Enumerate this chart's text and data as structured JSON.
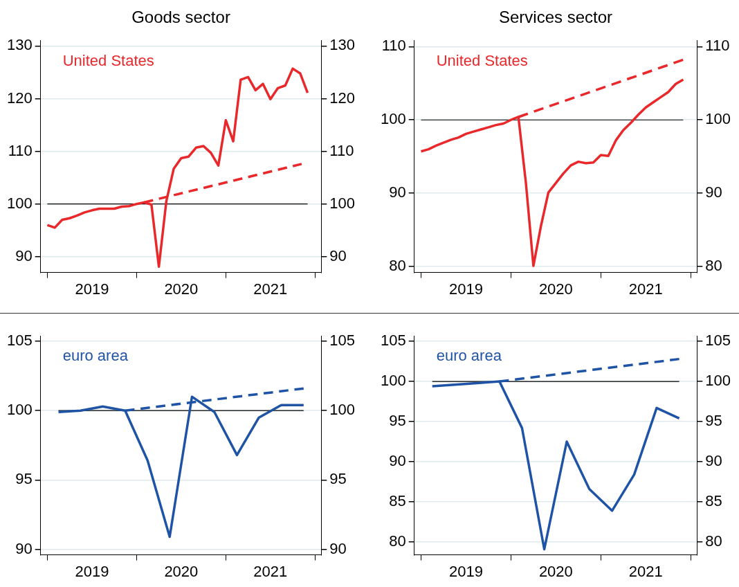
{
  "chart_data": [
    {
      "type": "line",
      "title": "Goods sector",
      "grid": "y",
      "marker": "none",
      "xlim": [
        "2018-12-04",
        "2022-01-27"
      ],
      "xticks": [
        {
          "value": "2019-01",
          "label": null
        },
        {
          "value": "2019-07",
          "label": "2019"
        },
        {
          "value": "2020-01",
          "label": null
        },
        {
          "value": "2020-07",
          "label": "2020"
        },
        {
          "value": "2021-01",
          "label": null
        },
        {
          "value": "2021-07",
          "label": "2021"
        },
        {
          "value": "2022-01",
          "label": null
        }
      ],
      "ylim": [
        87,
        131
      ],
      "yticks": [
        90,
        100,
        110,
        120,
        130
      ],
      "y2lim": [
        87,
        131
      ],
      "y2ticks": [
        90,
        100,
        110,
        120,
        130
      ],
      "ref_lines": [
        {
          "axis": "y",
          "value": 100,
          "color": "#000000"
        }
      ],
      "series": [
        {
          "name": "United States",
          "color": "#e8282b",
          "x": [
            "2019-01",
            "2019-02",
            "2019-03",
            "2019-04",
            "2019-05",
            "2019-06",
            "2019-07",
            "2019-08",
            "2019-09",
            "2019-10",
            "2019-11",
            "2019-12",
            "2020-01",
            "2020-02",
            "2020-03",
            "2020-04",
            "2020-05",
            "2020-06",
            "2020-07",
            "2020-08",
            "2020-09",
            "2020-10",
            "2020-11",
            "2020-12",
            "2021-01",
            "2021-02",
            "2021-03",
            "2021-04",
            "2021-05",
            "2021-06",
            "2021-07",
            "2021-08",
            "2021-09",
            "2021-10",
            "2021-11",
            "2021-12"
          ],
          "values": [
            96.0,
            95.5,
            97.0,
            97.3,
            97.8,
            98.4,
            98.8,
            99.1,
            99.1,
            99.1,
            99.5,
            99.6,
            100.0,
            100.3,
            99.9,
            88.1,
            100.5,
            106.7,
            108.7,
            109.0,
            110.7,
            111.0,
            109.7,
            107.3,
            115.9,
            111.9,
            123.6,
            124.1,
            121.6,
            122.8,
            119.9,
            122.0,
            122.5,
            125.7,
            124.8,
            121.1
          ]
        },
        {
          "color": "#e8282b",
          "line_style": "dashed",
          "x": [
            "2020-02",
            "2021-11-07"
          ],
          "values": [
            100.3,
            107.6
          ]
        }
      ]
    },
    {
      "type": "line",
      "title": "Services sector",
      "grid": "y",
      "marker": "none",
      "xlim": [
        "2018-12-04",
        "2022-01-27"
      ],
      "xticks": [
        {
          "value": "2019-01",
          "label": null
        },
        {
          "value": "2019-07",
          "label": "2019"
        },
        {
          "value": "2020-01",
          "label": null
        },
        {
          "value": "2020-07",
          "label": "2020"
        },
        {
          "value": "2021-01",
          "label": null
        },
        {
          "value": "2021-07",
          "label": "2021"
        },
        {
          "value": "2022-01",
          "label": null
        }
      ],
      "ylim": [
        79.2,
        110.8
      ],
      "yticks": [
        80,
        90,
        100,
        110
      ],
      "y2lim": [
        79.2,
        110.8
      ],
      "y2ticks": [
        80,
        90,
        100,
        110
      ],
      "ref_lines": [
        {
          "axis": "y",
          "value": 100,
          "color": "#000000"
        }
      ],
      "series": [
        {
          "name": "United States",
          "color": "#e8282b",
          "x": [
            "2019-01",
            "2019-02",
            "2019-03",
            "2019-04",
            "2019-05",
            "2019-06",
            "2019-07",
            "2019-08",
            "2019-09",
            "2019-10",
            "2019-11",
            "2019-12",
            "2020-01",
            "2020-02",
            "2020-03",
            "2020-04",
            "2020-05",
            "2020-06",
            "2020-07",
            "2020-08",
            "2020-09",
            "2020-10",
            "2020-11",
            "2020-12",
            "2021-01",
            "2021-02",
            "2021-03",
            "2021-04",
            "2021-05",
            "2021-06",
            "2021-07",
            "2021-08",
            "2021-09",
            "2021-10",
            "2021-11",
            "2021-12"
          ],
          "values": [
            95.7,
            96.0,
            96.5,
            96.9,
            97.3,
            97.6,
            98.1,
            98.4,
            98.7,
            99.0,
            99.3,
            99.5,
            100.0,
            100.4,
            91.4,
            80.1,
            85.5,
            90.1,
            91.4,
            92.7,
            93.8,
            94.3,
            94.1,
            94.2,
            95.2,
            95.1,
            97.2,
            98.6,
            99.6,
            100.7,
            101.7,
            102.4,
            103.1,
            103.8,
            104.9,
            105.5
          ]
        },
        {
          "color": "#e8282b",
          "line_style": "dashed",
          "x": [
            "2020-02",
            "2021-12"
          ],
          "values": [
            100.4,
            108.2
          ]
        }
      ]
    },
    {
      "type": "line",
      "grid": "y",
      "marker": "none",
      "xlim": [
        "2018-12-04",
        "2022-01-27"
      ],
      "xticks": [
        {
          "value": "2019-01",
          "label": null
        },
        {
          "value": "2019-07",
          "label": "2019"
        },
        {
          "value": "2020-01",
          "label": null
        },
        {
          "value": "2020-07",
          "label": "2020"
        },
        {
          "value": "2021-01",
          "label": null
        },
        {
          "value": "2021-07",
          "label": "2021"
        },
        {
          "value": "2022-01",
          "label": null
        }
      ],
      "ylim": [
        89.6,
        105.4
      ],
      "yticks": [
        90,
        95,
        100,
        105
      ],
      "y2lim": [
        89.6,
        105.4
      ],
      "y2ticks": [
        90,
        95,
        100,
        105
      ],
      "ref_lines": [
        {
          "axis": "y",
          "value": 100,
          "color": "#000000"
        }
      ],
      "series": [
        {
          "name": "euro area",
          "color": "#1f53a5",
          "x": [
            "2019-02-15",
            "2019-05-15",
            "2019-08-15",
            "2019-11-15",
            "2020-02-15",
            "2020-05-15",
            "2020-08-15",
            "2020-11-15",
            "2021-02-15",
            "2021-05-15",
            "2021-08-15",
            "2021-11-15"
          ],
          "values": [
            99.9,
            100.0,
            100.3,
            100.0,
            96.4,
            90.9,
            101.0,
            99.9,
            96.8,
            99.5,
            100.4,
            100.4
          ]
        },
        {
          "color": "#1f53a5",
          "line_style": "dashed",
          "x": [
            "2019-11-15",
            "2021-11-15"
          ],
          "values": [
            100.0,
            101.6
          ]
        }
      ]
    },
    {
      "type": "line",
      "grid": "y",
      "marker": "none",
      "xlim": [
        "2018-12-04",
        "2022-01-27"
      ],
      "xticks": [
        {
          "value": "2019-01",
          "label": null
        },
        {
          "value": "2019-07",
          "label": "2019"
        },
        {
          "value": "2020-01",
          "label": null
        },
        {
          "value": "2020-07",
          "label": "2020"
        },
        {
          "value": "2021-01",
          "label": null
        },
        {
          "value": "2021-07",
          "label": "2021"
        },
        {
          "value": "2022-01",
          "label": null
        }
      ],
      "ylim": [
        78.4,
        105.7
      ],
      "yticks": [
        80,
        85,
        90,
        95,
        100,
        105
      ],
      "y2lim": [
        78.4,
        105.7
      ],
      "y2ticks": [
        80,
        85,
        90,
        95,
        100,
        105
      ],
      "ref_lines": [
        {
          "axis": "y",
          "value": 100,
          "color": "#000000"
        }
      ],
      "series": [
        {
          "name": "euro area",
          "color": "#1f53a5",
          "x": [
            "2019-02-15",
            "2019-05-15",
            "2019-08-15",
            "2019-11-15",
            "2020-02-15",
            "2020-05-15",
            "2020-08-15",
            "2020-11-15",
            "2021-02-15",
            "2021-05-15",
            "2021-08-15",
            "2021-11-15"
          ],
          "values": [
            99.4,
            99.6,
            99.8,
            100.0,
            94.2,
            79.1,
            92.5,
            86.6,
            83.9,
            88.4,
            96.7,
            95.4
          ]
        },
        {
          "color": "#1f53a5",
          "line_style": "dashed",
          "x": [
            "2019-11-15",
            "2021-11-15"
          ],
          "values": [
            100.0,
            102.8
          ]
        }
      ]
    }
  ]
}
